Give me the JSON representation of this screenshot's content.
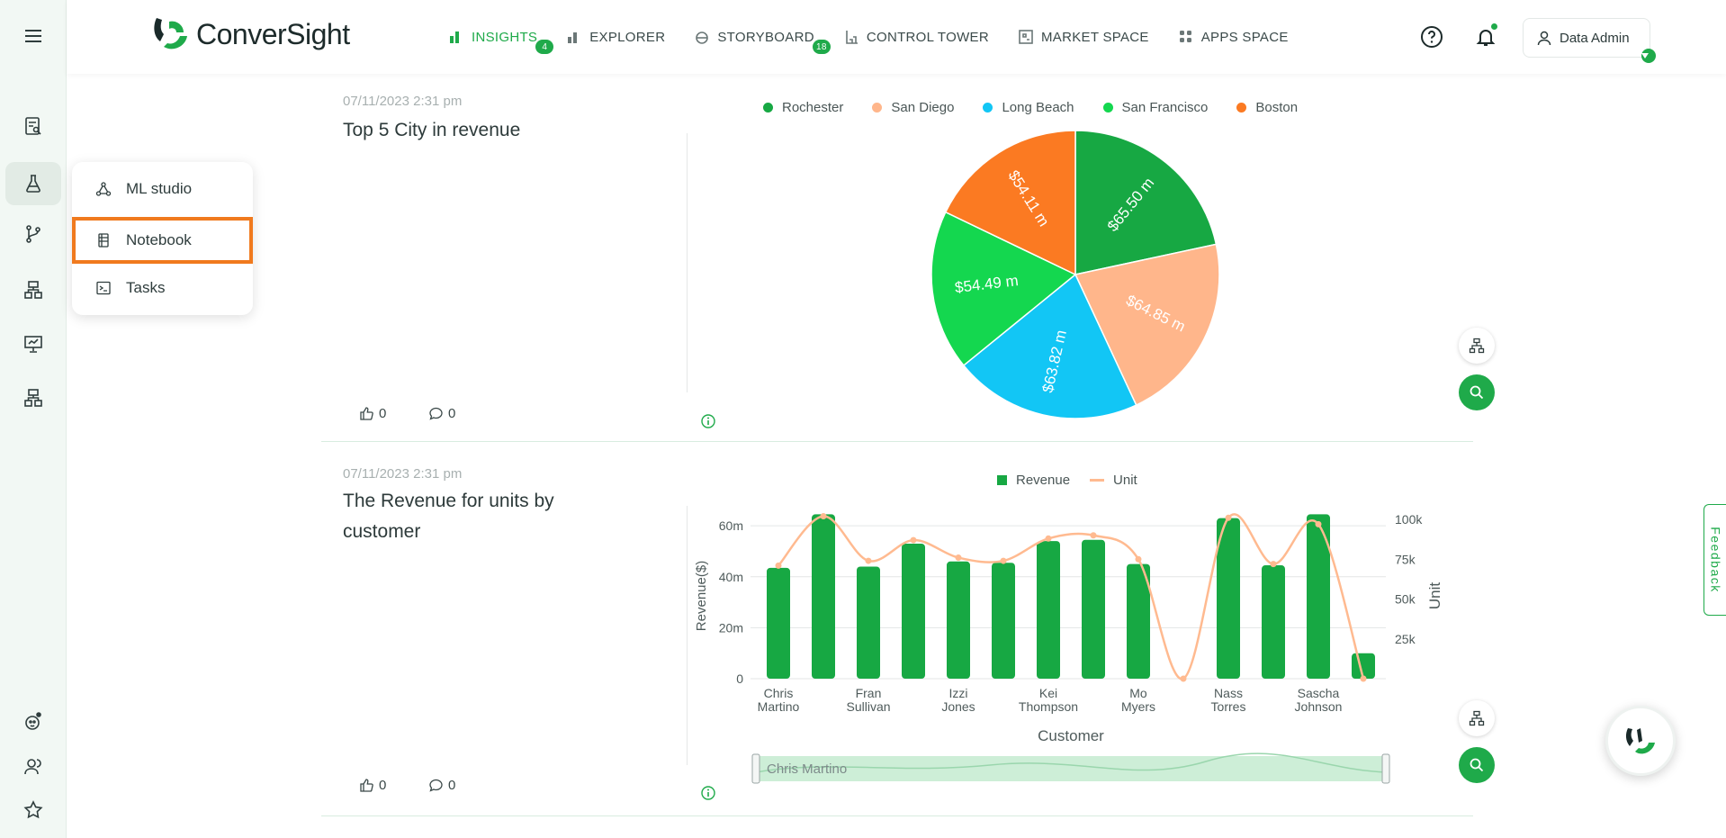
{
  "brand": {
    "name": "ConverSight"
  },
  "nav": {
    "items": [
      {
        "label": "INSIGHTS",
        "badge": "4",
        "icon": "bar-chart-icon",
        "active": true
      },
      {
        "label": "EXPLORER",
        "badge": "",
        "icon": "explorer-icon",
        "active": false
      },
      {
        "label": "STORYBOARD",
        "badge": "18",
        "icon": "storyboard-icon",
        "active": false
      },
      {
        "label": "CONTROL TOWER",
        "badge": "",
        "icon": "control-tower-icon",
        "active": false
      },
      {
        "label": "MARKET SPACE",
        "badge": "",
        "icon": "market-space-icon",
        "active": false
      },
      {
        "label": "APPS SPACE",
        "badge": "",
        "icon": "apps-space-icon",
        "active": false
      }
    ]
  },
  "user": {
    "name": "Data Admin"
  },
  "popup_menu": {
    "items": [
      {
        "label": "ML studio",
        "icon": "ml-studio-icon",
        "highlighted": false
      },
      {
        "label": "Notebook",
        "icon": "notebook-icon",
        "highlighted": true
      },
      {
        "label": "Tasks",
        "icon": "terminal-icon",
        "highlighted": false
      }
    ]
  },
  "cards": [
    {
      "date": "07/11/2023 2:31 pm",
      "title": "Top 5 City in revenue",
      "likes": "0",
      "comments": "0"
    },
    {
      "date": "07/11/2023 2:31 pm",
      "title": "The Revenue for units by customer",
      "likes": "0",
      "comments": "0"
    }
  ],
  "feedback_label": "Feedback",
  "colors": {
    "accent": "#1faa4a",
    "highlight": "#f07a1e"
  },
  "chart_data": [
    {
      "type": "pie",
      "categories": [
        "Rochester",
        "San Diego",
        "Long Beach",
        "San Francisco",
        "Boston"
      ],
      "values": [
        65.5,
        64.85,
        63.82,
        54.49,
        54.11
      ],
      "data_labels": [
        "$65.50 m",
        "$64.85 m",
        "$63.82 m",
        "$54.49 m",
        "$54.11 m"
      ],
      "colors": [
        "#17a843",
        "#ffb68b",
        "#12c6f5",
        "#14d74f",
        "#fb7a22"
      ],
      "legend": "top",
      "title": ""
    },
    {
      "type": "bar",
      "categories": [
        "Chris Martino",
        "",
        "Fran Sullivan",
        "",
        "Izzi Jones",
        "",
        "Kei Thompson",
        "",
        "Mo Myers",
        "",
        "Nass Torres",
        "",
        "Sascha Johnson",
        ""
      ],
      "tick_labels": [
        [
          "Chris",
          "Martino"
        ],
        [
          "Fran",
          "Sullivan"
        ],
        [
          "Izzi",
          "Jones"
        ],
        [
          "Kei",
          "Thompson"
        ],
        [
          "Mo",
          "Myers"
        ],
        [
          "Nass",
          "Torres"
        ],
        [
          "Sascha",
          "Johnson"
        ]
      ],
      "series": [
        {
          "name": "Revenue",
          "kind": "bar",
          "axis": "left",
          "color": "#17a843",
          "values": [
            43.5,
            64.5,
            44,
            53,
            46,
            45.5,
            54,
            54.5,
            45,
            0,
            63,
            44.5,
            64.5,
            10
          ]
        },
        {
          "name": "Unit",
          "kind": "line",
          "axis": "right",
          "color": "#ffba90",
          "values": [
            71000,
            102000,
            74000,
            87000,
            76000,
            74000,
            88000,
            90000,
            75000,
            0,
            101000,
            72000,
            97000,
            0
          ]
        }
      ],
      "xlabel": "Customer",
      "ylabel": "Revenue($)",
      "y2label": "Unit",
      "ylim": [
        0,
        65
      ],
      "y2lim": [
        0,
        104000
      ],
      "yticks": [
        "0",
        "20m",
        "40m",
        "60m"
      ],
      "y2ticks": [
        "25k",
        "50k",
        "75k",
        "100k"
      ],
      "range_slider_label": "Chris Martino",
      "legend": "top"
    }
  ]
}
